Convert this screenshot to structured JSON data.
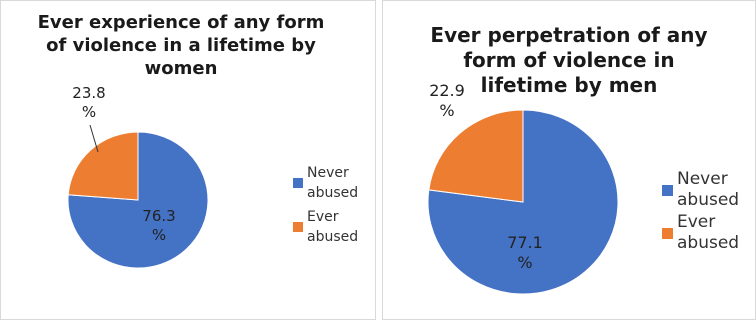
{
  "colors": {
    "never_abused": "#4472C4",
    "ever_abused": "#ED7D31"
  },
  "chart_data": [
    {
      "type": "pie",
      "title": "Ever experience of any form\nof violence in a lifetime by\nwomen",
      "categories": [
        "Never abused",
        "Ever abused"
      ],
      "values": [
        76.3,
        23.8
      ],
      "data_labels": [
        "76.3\n%",
        "23.8\n%"
      ],
      "legend": {
        "placement": "right",
        "entries": [
          "Never\nabused",
          "Ever\nabused"
        ]
      }
    },
    {
      "type": "pie",
      "title": "Ever perpetration of any\nform of violence in\nlifetime by men",
      "categories": [
        "Never abused",
        "Ever abused"
      ],
      "values": [
        77.1,
        22.9
      ],
      "data_labels": [
        "77.1\n%",
        "22.9\n%"
      ],
      "legend": {
        "placement": "right",
        "entries": [
          "Never\nabused",
          "Ever\nabused"
        ]
      }
    }
  ]
}
